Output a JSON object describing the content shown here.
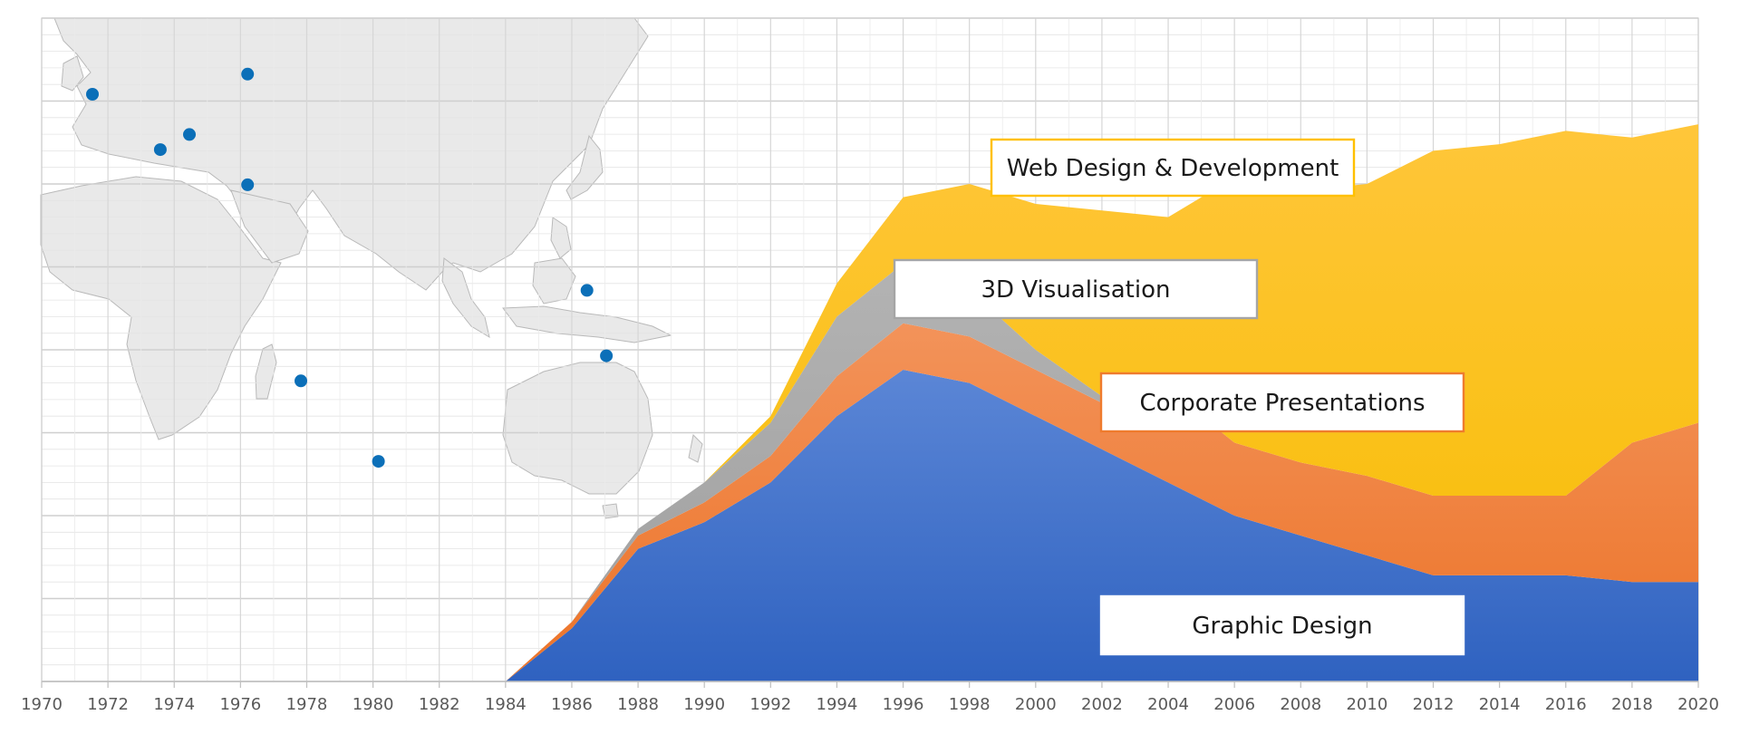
{
  "chart_data": {
    "type": "area",
    "stacked": true,
    "title": "",
    "xlabel": "",
    "ylabel": "",
    "grid": true,
    "xlim": [
      1970,
      2020
    ],
    "ylim": [
      0,
      100
    ],
    "x": [
      1984,
      1986,
      1988,
      1990,
      1992,
      1994,
      1996,
      1998,
      2000,
      2002,
      2004,
      2006,
      2008,
      2010,
      2012,
      2014,
      2016,
      2018,
      2020
    ],
    "x_ticks": [
      "1970",
      "1972",
      "1974",
      "1976",
      "1978",
      "1980",
      "1982",
      "1984",
      "1986",
      "1988",
      "1990",
      "1992",
      "1994",
      "1996",
      "1998",
      "2000",
      "2002",
      "2004",
      "2006",
      "2008",
      "2010",
      "2012",
      "2014",
      "2016",
      "2018",
      "2020"
    ],
    "series": [
      {
        "name": "Graphic Design",
        "color": "#3366cc",
        "values": [
          0,
          8,
          20,
          24,
          30,
          40,
          47,
          45,
          40,
          35,
          30,
          25,
          22,
          19,
          16,
          16,
          16,
          15,
          15
        ]
      },
      {
        "name": "Corporate Presentations",
        "color": "#ef7b2d",
        "values": [
          0,
          1,
          2,
          3,
          4,
          6,
          7,
          7,
          7,
          7,
          14,
          11,
          11,
          12,
          12,
          12,
          12,
          21,
          24
        ]
      },
      {
        "name": "3D Visualisation",
        "color": "#a5a5a5",
        "values": [
          0,
          0,
          1,
          3,
          5,
          9,
          9,
          7,
          3,
          1,
          0,
          0,
          0,
          0,
          0,
          0,
          0,
          0,
          0
        ]
      },
      {
        "name": "Web Design & Development",
        "color": "#ffc000",
        "values": [
          0,
          0,
          0,
          0,
          1,
          5,
          10,
          16,
          22,
          28,
          26,
          40,
          41,
          44,
          52,
          53,
          55,
          46,
          45
        ]
      }
    ],
    "callouts": [
      {
        "series": "Web Design & Development",
        "text": "Web Design & Development",
        "border": "#ffc000"
      },
      {
        "series": "3D Visualisation",
        "text": "3D Visualisation",
        "border": "#a5a5a5"
      },
      {
        "series": "Corporate Presentations",
        "text": "Corporate Presentations",
        "border": "#ef7b2d"
      },
      {
        "series": "Graphic Design",
        "text": "Graphic Design",
        "border": "#ffffff"
      }
    ]
  },
  "map": {
    "marker_color": "#0b6fb8",
    "land_color": "#e9e9e9",
    "markers": [
      {
        "lon": -2,
        "lat": 53
      },
      {
        "lon": 12,
        "lat": 42
      },
      {
        "lon": 18,
        "lat": 45
      },
      {
        "lon": 30,
        "lat": 57
      },
      {
        "lon": 30,
        "lat": 35
      },
      {
        "lon": 41,
        "lat": -4
      },
      {
        "lon": 57,
        "lat": -20
      },
      {
        "lon": 100,
        "lat": 14
      },
      {
        "lon": 104,
        "lat": 1
      }
    ]
  }
}
